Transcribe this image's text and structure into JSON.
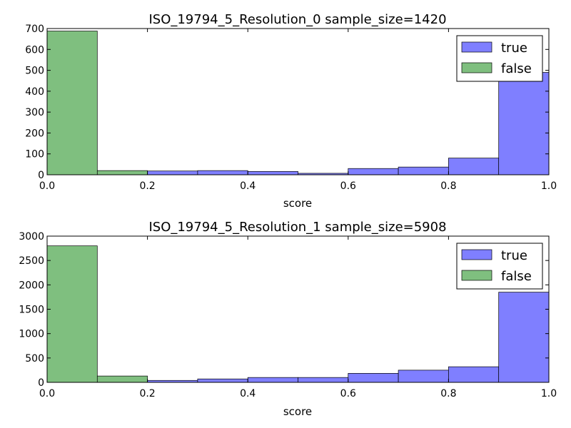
{
  "colors": {
    "true": "#7f7fff",
    "false": "#7fbf7f",
    "edge": "#000000",
    "background": "#ffffff"
  },
  "chart_data": [
    {
      "type": "bar",
      "title": "ISO_19794_5_Resolution_0 sample_size=1420",
      "xlabel": "score",
      "ylabel": "",
      "xlim": [
        0.0,
        1.0
      ],
      "ylim": [
        0,
        700
      ],
      "xticks": [
        "0.0",
        "0.2",
        "0.4",
        "0.6",
        "0.8",
        "1.0"
      ],
      "yticks": [
        "0",
        "100",
        "200",
        "300",
        "400",
        "500",
        "600",
        "700"
      ],
      "grid": false,
      "legend_position": "top-right",
      "bin_edges": [
        0.0,
        0.1,
        0.2,
        0.3,
        0.4,
        0.5,
        0.6,
        0.7,
        0.8,
        0.9,
        1.0
      ],
      "series": [
        {
          "name": "true",
          "values": [
            0,
            0,
            18,
            20,
            16,
            7,
            30,
            37,
            80,
            490
          ]
        },
        {
          "name": "false",
          "values": [
            688,
            20,
            0,
            0,
            0,
            0,
            0,
            0,
            0,
            0
          ]
        }
      ]
    },
    {
      "type": "bar",
      "title": "ISO_19794_5_Resolution_1 sample_size=5908",
      "xlabel": "score",
      "ylabel": "",
      "xlim": [
        0.0,
        1.0
      ],
      "ylim": [
        0,
        3000
      ],
      "xticks": [
        "0.0",
        "0.2",
        "0.4",
        "0.6",
        "0.8",
        "1.0"
      ],
      "yticks": [
        "0",
        "500",
        "1000",
        "1500",
        "2000",
        "2500",
        "3000"
      ],
      "grid": false,
      "legend_position": "top-right",
      "bin_edges": [
        0.0,
        0.1,
        0.2,
        0.3,
        0.4,
        0.5,
        0.6,
        0.7,
        0.8,
        0.9,
        1.0
      ],
      "series": [
        {
          "name": "true",
          "values": [
            0,
            0,
            40,
            70,
            100,
            100,
            185,
            250,
            320,
            1850
          ]
        },
        {
          "name": "false",
          "values": [
            2800,
            130,
            0,
            0,
            0,
            0,
            0,
            0,
            0,
            0
          ]
        }
      ]
    }
  ]
}
